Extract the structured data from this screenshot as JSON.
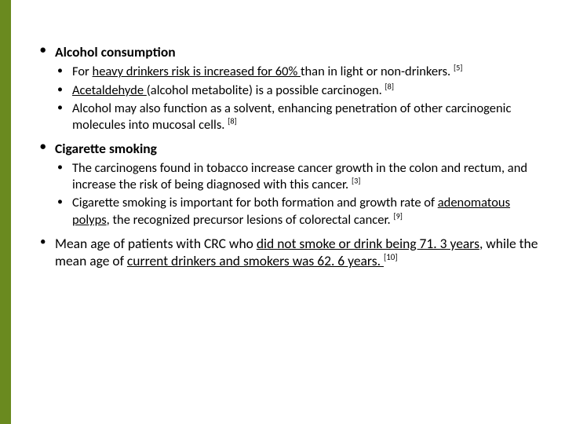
{
  "accent_color": "#6a8a1f",
  "sections": {
    "alcohol": {
      "heading": "Alcohol consumption",
      "b1_pre": "For ",
      "b1_u": "heavy drinkers risk is increased for 60% ",
      "b1_post": "than in light or non-drinkers. ",
      "b1_ref": "[5]",
      "b2_u": "Acetaldehyde ",
      "b2_post": "(alcohol metabolite) is a possible carcinogen. ",
      "b2_ref": "[8]",
      "b3_text": "Alcohol may also function as a solvent, enhancing penetration of other carcinogenic molecules into mucosal cells. ",
      "b3_ref": "[8]"
    },
    "cigarette": {
      "heading": "Cigarette smoking",
      "b1_text": "The carcinogens found in tobacco increase cancer growth in the colon and rectum, and increase the risk of being diagnosed with this cancer. ",
      "b1_ref": "[3]",
      "b2_pre": "Cigarette smoking is important for both formation and growth rate of ",
      "b2_u": "adenomatous polyps",
      "b2_post": ", the recognized precursor lesions of colorectal cancer. ",
      "b2_ref": "[9]"
    },
    "meanage": {
      "pre": "Mean age of patients with CRC who ",
      "u1": "did not smoke or drink being 71. 3 years",
      "mid": ", while the mean age of ",
      "u2": "current drinkers and smokers was 62. 6 years. ",
      "ref": "[10]"
    }
  }
}
